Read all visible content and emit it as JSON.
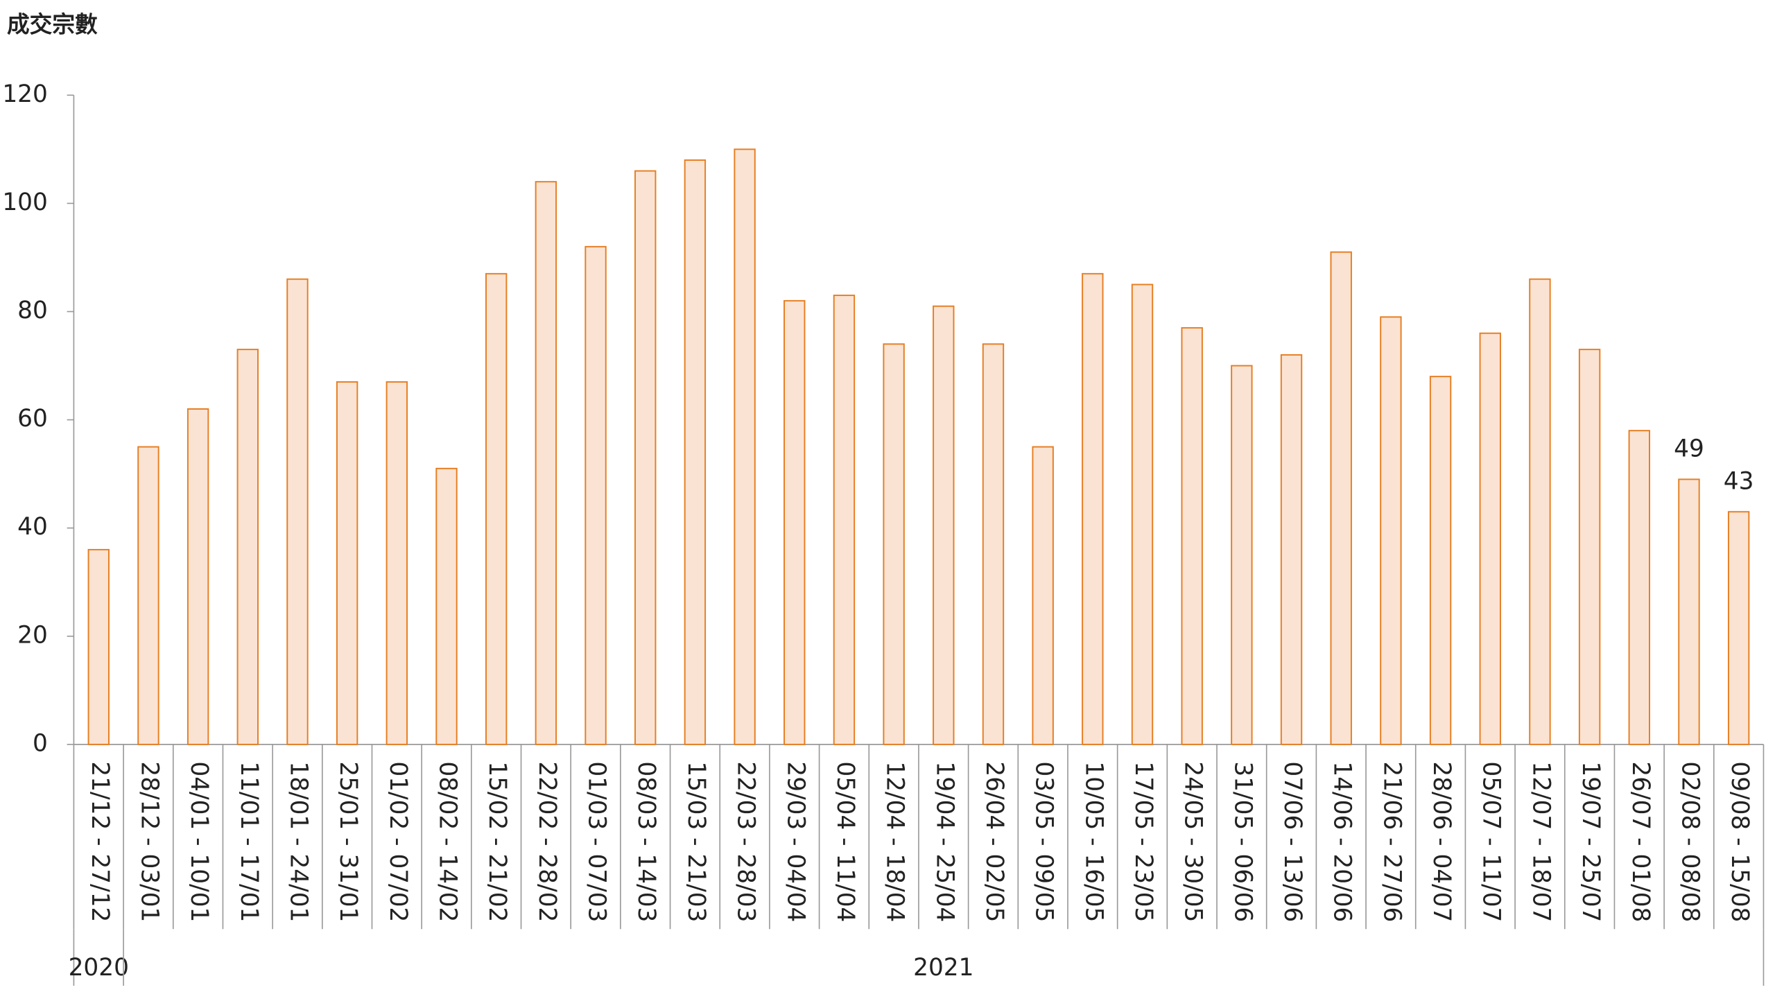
{
  "chart_data": {
    "type": "bar",
    "title": "成交宗數",
    "categories": [
      "21/12 - 27/12",
      "28/12 - 03/01",
      "04/01 - 10/01",
      "11/01 - 17/01",
      "18/01 - 24/01",
      "25/01 - 31/01",
      "01/02 - 07/02",
      "08/02 - 14/02",
      "15/02 - 21/02",
      "22/02 - 28/02",
      "01/03 - 07/03",
      "08/03 - 14/03",
      "15/03 - 21/03",
      "22/03 - 28/03",
      "29/03 - 04/04",
      "05/04 - 11/04",
      "12/04 - 18/04",
      "19/04 - 25/04",
      "26/04 - 02/05",
      "03/05 - 09/05",
      "10/05 - 16/05",
      "17/05 - 23/05",
      "24/05 - 30/05",
      "31/05 - 06/06",
      "07/06 - 13/06",
      "14/06 - 20/06",
      "21/06 - 27/06",
      "28/06 - 04/07",
      "05/07 - 11/07",
      "12/07 - 18/07",
      "19/07 - 25/07",
      "26/07 - 01/08",
      "02/08 - 08/08",
      "09/08 - 15/08"
    ],
    "values": [
      36,
      55,
      62,
      73,
      86,
      67,
      67,
      51,
      87,
      104,
      92,
      106,
      108,
      110,
      82,
      83,
      74,
      81,
      74,
      55,
      87,
      85,
      77,
      70,
      72,
      91,
      79,
      68,
      76,
      86,
      73,
      58,
      49,
      43
    ],
    "labeled": [
      false,
      false,
      false,
      false,
      false,
      false,
      false,
      false,
      false,
      false,
      false,
      false,
      false,
      false,
      false,
      false,
      false,
      false,
      false,
      false,
      false,
      false,
      false,
      false,
      false,
      false,
      false,
      false,
      false,
      false,
      false,
      false,
      true,
      true
    ],
    "groups": [
      {
        "label": "2020",
        "span": 1
      },
      {
        "label": "2021",
        "span": 33
      }
    ],
    "color": "#fbe3d3",
    "edge_color": "#e67e22",
    "ylim": [
      0,
      120
    ],
    "yticks": [
      0,
      20,
      40,
      60,
      80,
      100,
      120
    ],
    "grid": false
  }
}
